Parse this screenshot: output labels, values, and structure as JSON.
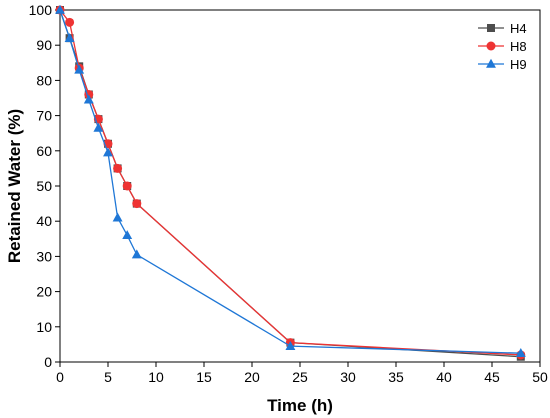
{
  "chart_data": {
    "type": "line",
    "title": "",
    "xlabel": "Time (h)",
    "ylabel": "Retained Water (%)",
    "xlim": [
      0,
      50
    ],
    "ylim": [
      0,
      100
    ],
    "xticks": [
      0,
      5,
      10,
      15,
      20,
      25,
      30,
      35,
      40,
      45,
      50
    ],
    "yticks": [
      0,
      10,
      20,
      30,
      40,
      50,
      60,
      70,
      80,
      90,
      100
    ],
    "grid": false,
    "legend_position": "top-right",
    "series": [
      {
        "name": "H4",
        "color": "#4d4d4d",
        "marker": "square",
        "x": [
          0,
          1,
          2,
          3,
          4,
          5,
          6,
          7,
          8,
          24,
          48
        ],
        "y": [
          100,
          92,
          84,
          76,
          69,
          62,
          55,
          50,
          45,
          5.5,
          1.5
        ]
      },
      {
        "name": "H8",
        "color": "#ee3333",
        "marker": "circle",
        "x": [
          0,
          1,
          2,
          3,
          4,
          5,
          6,
          7,
          8,
          24,
          48
        ],
        "y": [
          100,
          96.5,
          83.5,
          76,
          69,
          62,
          55,
          50,
          45,
          5.5,
          2
        ]
      },
      {
        "name": "H9",
        "color": "#1f77d6",
        "marker": "triangle",
        "x": [
          0,
          1,
          2,
          3,
          4,
          5,
          6,
          7,
          8,
          24,
          48
        ],
        "y": [
          100,
          92,
          83,
          74.5,
          66.5,
          59.5,
          41,
          36,
          30.5,
          4.5,
          2.5
        ]
      }
    ]
  }
}
